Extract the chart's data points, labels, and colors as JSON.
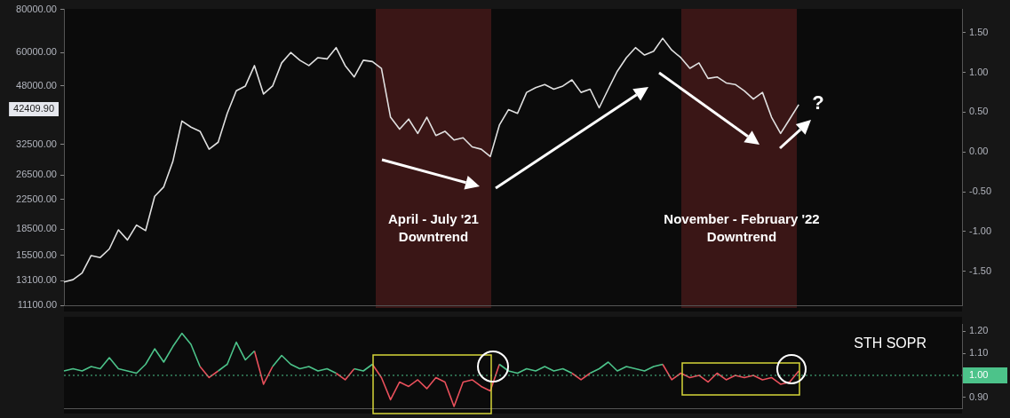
{
  "chart_data": [
    {
      "type": "line",
      "categories": [
        null,
        null,
        null,
        null,
        null,
        null,
        null,
        null,
        null,
        null,
        null,
        null,
        null,
        null,
        null,
        null,
        null,
        null,
        null,
        null,
        null,
        null,
        null,
        null,
        null,
        null,
        null,
        null,
        null,
        null,
        null,
        null,
        null,
        null,
        null,
        null,
        null,
        null,
        null,
        null,
        null,
        null,
        null,
        null,
        null,
        null,
        null,
        null,
        null,
        null,
        null,
        null,
        null,
        null,
        null,
        null,
        null,
        null,
        null,
        null,
        null,
        null,
        null,
        null,
        null,
        null,
        null,
        null,
        null,
        null,
        null,
        null,
        null,
        null,
        null,
        null,
        null,
        null,
        null,
        null,
        null,
        null,
        null,
        null,
        null,
        null,
        null,
        null,
        null,
        null,
        null,
        null,
        null,
        null,
        null,
        null,
        null,
        null,
        null,
        null
      ],
      "series": [
        {
          "color": "#e0e0e0",
          "values": [
            13000,
            13200,
            13800,
            15500,
            15300,
            16200,
            18400,
            17200,
            19000,
            18300,
            23000,
            24500,
            29000,
            38000,
            36500,
            35500,
            31500,
            33000,
            40000,
            46500,
            48000,
            55000,
            45500,
            48000,
            56000,
            60000,
            57000,
            55000,
            58000,
            57500,
            62000,
            55000,
            51000,
            57000,
            56500,
            54000,
            39000,
            36000,
            38500,
            35000,
            39000,
            34500,
            35500,
            33500,
            34000,
            32000,
            31500,
            30000,
            37000,
            41000,
            40000,
            46000,
            47500,
            48500,
            47000,
            48000,
            50000,
            46000,
            47000,
            41500,
            47000,
            53000,
            58000,
            62000,
            59000,
            60500,
            66000,
            61000,
            58000,
            54000,
            56000,
            50500,
            51000,
            49000,
            48500,
            46500,
            44000,
            46000,
            39000,
            35000,
            38500,
            42409.9,
            null,
            null,
            null,
            null,
            null,
            null,
            null,
            null,
            null,
            null,
            null,
            null,
            null,
            null,
            null,
            null,
            null,
            null
          ]
        }
      ],
      "log": true,
      "ylim": [
        11100,
        80000
      ],
      "yticks": [
        {
          "value": 11100,
          "label": "11100.00"
        },
        {
          "value": 13100,
          "label": "13100.00"
        },
        {
          "value": 15500,
          "label": "15500.00"
        },
        {
          "value": 18500,
          "label": "18500.00"
        },
        {
          "value": 22500,
          "label": "22500.00"
        },
        {
          "value": 26500,
          "label": "26500.00"
        },
        {
          "value": 32500,
          "label": "32500.00"
        },
        {
          "value": 48000,
          "label": "48000.00"
        },
        {
          "value": 60000,
          "label": "60000.00"
        },
        {
          "value": 80000,
          "label": "80000.00"
        }
      ],
      "y2lim": [
        -1.93,
        1.79
      ],
      "y2ticks": [
        {
          "value": -1.5,
          "label": "-1.50"
        },
        {
          "value": -1,
          "label": "-1.00"
        },
        {
          "value": -0.5,
          "label": "-0.50"
        },
        {
          "value": 0,
          "label": "0.00"
        },
        {
          "value": 0.5,
          "label": "0.50"
        },
        {
          "value": 1,
          "label": "1.00"
        },
        {
          "value": 1.5,
          "label": "1.50"
        }
      ],
      "annotations": [
        "42409.90",
        "April - July '21\nDowntrend",
        "November - February '22\nDowntrend",
        "?"
      ],
      "marker": "none",
      "grid": false,
      "legend": false,
      "tick_labels": "y"
    },
    {
      "type": "line",
      "title": "STH SOPR",
      "categories": [
        null,
        null,
        null,
        null,
        null,
        null,
        null,
        null,
        null,
        null,
        null,
        null,
        null,
        null,
        null,
        null,
        null,
        null,
        null,
        null,
        null,
        null,
        null,
        null,
        null,
        null,
        null,
        null,
        null,
        null,
        null,
        null,
        null,
        null,
        null,
        null,
        null,
        null,
        null,
        null,
        null,
        null,
        null,
        null,
        null,
        null,
        null,
        null,
        null,
        null,
        null,
        null,
        null,
        null,
        null,
        null,
        null,
        null,
        null,
        null,
        null,
        null,
        null,
        null,
        null,
        null,
        null,
        null,
        null,
        null,
        null,
        null,
        null,
        null,
        null,
        null,
        null,
        null,
        null,
        null,
        null,
        null,
        null,
        null,
        null,
        null,
        null,
        null,
        null,
        null,
        null,
        null,
        null,
        null,
        null,
        null,
        null,
        null,
        null,
        null
      ],
      "series": [
        {
          "color": "#4cc38a",
          "values": [
            1.02,
            1.03,
            1.02,
            1.04,
            1.03,
            1.08,
            1.03,
            1.02,
            1.01,
            1.05,
            1.12,
            1.06,
            1.13,
            1.19,
            1.14,
            1.04,
            null,
            1.02,
            1.05,
            1.15,
            1.07,
            1.11,
            null,
            1.04,
            1.09,
            1.05,
            1.03,
            1.04,
            1.02,
            1.03,
            1.01,
            null,
            1.03,
            1.02,
            1.05,
            null,
            null,
            null,
            null,
            null,
            null,
            null,
            null,
            null,
            null,
            null,
            null,
            null,
            1.05,
            1.02,
            1.01,
            1.03,
            1.02,
            1.04,
            1.02,
            1.03,
            1.01,
            null,
            1.01,
            1.03,
            1.06,
            1.02,
            1.04,
            1.03,
            1.02,
            1.04,
            1.05,
            null,
            null,
            null,
            null,
            null,
            null,
            null,
            null,
            null,
            null,
            null,
            null,
            null,
            null,
            null,
            null,
            null,
            null,
            null,
            null,
            null,
            null,
            null,
            null,
            null,
            null,
            null,
            null,
            null,
            null,
            null,
            null,
            null
          ]
        },
        {
          "color": "#e8505b",
          "values": [
            null,
            null,
            null,
            null,
            null,
            null,
            null,
            null,
            null,
            null,
            null,
            null,
            null,
            null,
            null,
            1.04,
            0.99,
            1.02,
            null,
            null,
            null,
            1.11,
            0.96,
            1.04,
            null,
            null,
            null,
            null,
            null,
            null,
            1.01,
            0.98,
            1.03,
            null,
            1.05,
            0.99,
            0.89,
            0.97,
            0.95,
            0.98,
            0.94,
            0.99,
            0.97,
            0.86,
            0.97,
            0.98,
            0.95,
            0.93,
            1.05,
            null,
            null,
            null,
            null,
            null,
            null,
            null,
            1.01,
            0.98,
            1.01,
            null,
            null,
            null,
            null,
            null,
            null,
            null,
            1.05,
            0.98,
            1.01,
            0.99,
            1.0,
            0.97,
            1.01,
            0.98,
            1.0,
            0.99,
            1.0,
            0.98,
            0.99,
            0.96,
            0.97,
            1.02,
            null,
            null,
            null,
            null,
            null,
            null,
            null,
            null,
            null,
            null,
            null,
            null,
            null,
            null,
            null,
            null,
            null,
            null
          ]
        }
      ],
      "ylim": [
        0.85,
        1.23
      ],
      "yticks": [
        {
          "value": 0.9,
          "label": "0.90"
        },
        {
          "value": 1.1,
          "label": "1.10"
        },
        {
          "value": 1.2,
          "label": "1.20"
        }
      ],
      "ref_lines": [
        {
          "axis": "y",
          "value": 1,
          "label": "1.00",
          "color": "#4cc38a",
          "line_style": "dotted"
        }
      ],
      "marker": "none",
      "grid": false,
      "legend": false,
      "tick_labels": "y"
    }
  ]
}
